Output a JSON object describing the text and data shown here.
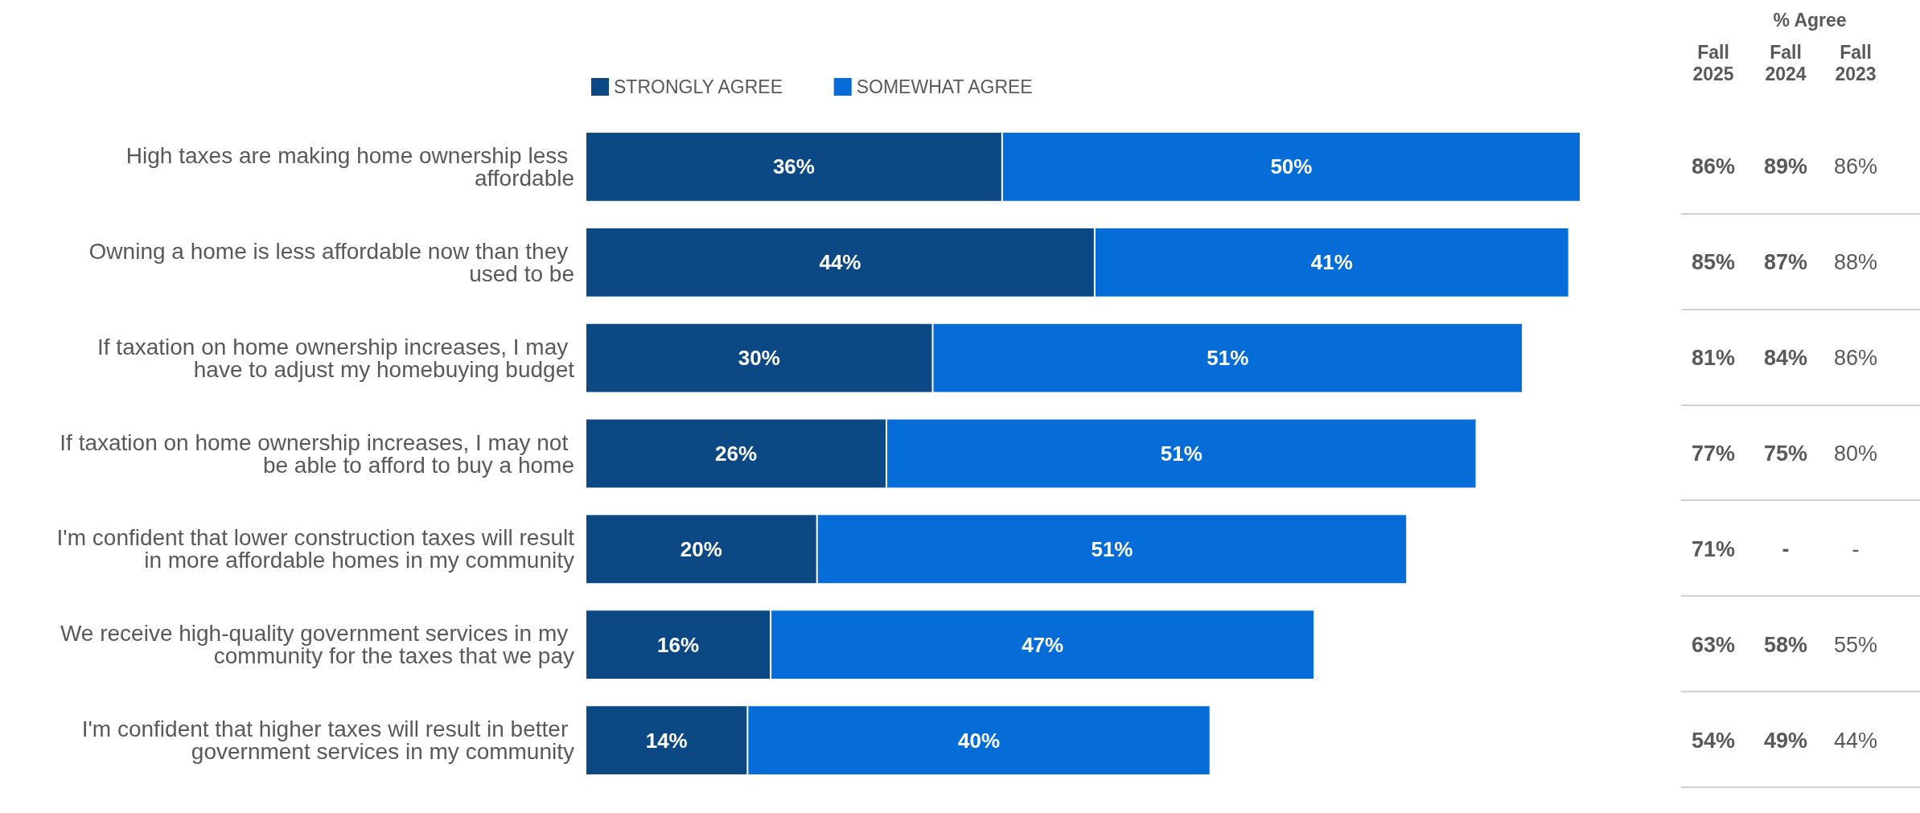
{
  "chart_data": [
    {
      "type": "bar",
      "orientation": "horizontal",
      "stacked": true,
      "legend": "top",
      "categories": [
        "High taxes are making home ownership less affordable",
        "Owning a home is less affordable now than they used to be",
        "If taxation on home ownership increases, I may have to adjust my homebuying budget",
        "If taxation on home ownership increases, I may not be able to afford to buy a home",
        "I'm confident that lower construction taxes will result in more affordable homes in my community",
        "We receive high-quality government services in my community for the taxes that we pay",
        "I'm confident that higher taxes will result in better government services in my community"
      ],
      "series": [
        {
          "name": "STRONGLY AGREE",
          "color": "#0b4884",
          "values": [
            36,
            44,
            30,
            26,
            20,
            16,
            14
          ],
          "value_labels": [
            "36%",
            "44%",
            "30%",
            "26%",
            "20%",
            "16%",
            "14%"
          ]
        },
        {
          "name": "SOMEWHAT AGREE",
          "color": "#066cd8",
          "values": [
            50,
            41,
            51,
            51,
            51,
            47,
            40
          ],
          "value_labels": [
            "50%",
            "41%",
            "51%",
            "51%",
            "51%",
            "47%",
            "40%"
          ]
        }
      ]
    },
    {
      "type": "other",
      "title": "% Agree",
      "categories": [
        "Fall\n2025",
        "Fall\n2024",
        "Fall\n2023"
      ],
      "cell_labels": [
        [
          "86%",
          "89%",
          "86%"
        ],
        [
          "85%",
          "87%",
          "88%"
        ],
        [
          "81%",
          "84%",
          "86%"
        ],
        [
          "77%",
          "75%",
          "80%"
        ],
        [
          "71%",
          "-",
          "-"
        ],
        [
          "63%",
          "58%",
          "55%"
        ],
        [
          "54%",
          "49%",
          "44%"
        ]
      ]
    }
  ]
}
